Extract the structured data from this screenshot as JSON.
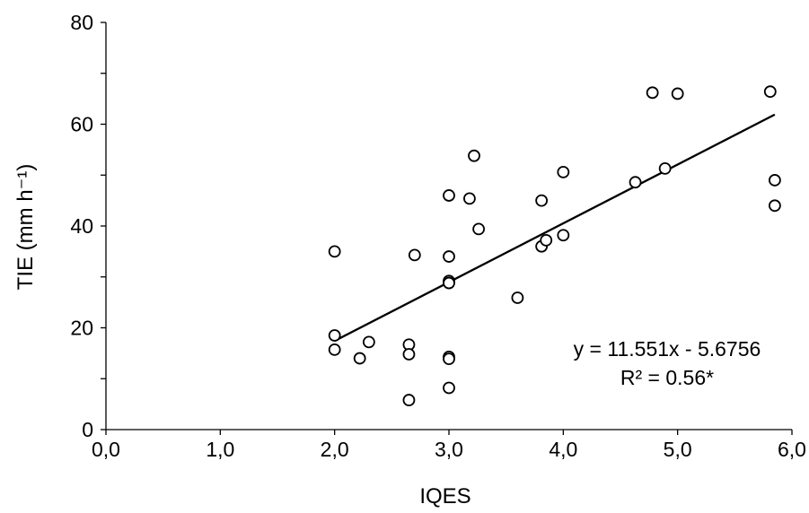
{
  "chart_data": {
    "type": "scatter",
    "xlabel": "IQES",
    "ylabel": "TIE (mm h⁻¹)",
    "xlim": [
      0,
      6
    ],
    "ylim": [
      0,
      80
    ],
    "x_ticks": [
      "0,0",
      "1,0",
      "2,0",
      "3,0",
      "4,0",
      "5,0",
      "6,0"
    ],
    "x_tick_values": [
      0,
      1,
      2,
      3,
      4,
      5,
      6
    ],
    "y_ticks": [
      "0",
      "20",
      "40",
      "60",
      "80"
    ],
    "y_tick_values": [
      0,
      20,
      40,
      60,
      80
    ],
    "grid": false,
    "series": [
      {
        "points": [
          {
            "x": 2.0,
            "y": 35.0
          },
          {
            "x": 2.0,
            "y": 18.5
          },
          {
            "x": 2.0,
            "y": 15.7
          },
          {
            "x": 2.22,
            "y": 14.0
          },
          {
            "x": 2.3,
            "y": 17.2
          },
          {
            "x": 2.65,
            "y": 16.7
          },
          {
            "x": 2.65,
            "y": 14.8
          },
          {
            "x": 2.65,
            "y": 5.8
          },
          {
            "x": 2.7,
            "y": 34.3
          },
          {
            "x": 3.0,
            "y": 46.0
          },
          {
            "x": 3.0,
            "y": 34.0
          },
          {
            "x": 3.0,
            "y": 29.2
          },
          {
            "x": 3.0,
            "y": 28.8
          },
          {
            "x": 3.0,
            "y": 14.3
          },
          {
            "x": 3.0,
            "y": 13.9
          },
          {
            "x": 3.0,
            "y": 8.2
          },
          {
            "x": 3.18,
            "y": 45.4
          },
          {
            "x": 3.22,
            "y": 53.8
          },
          {
            "x": 3.26,
            "y": 39.4
          },
          {
            "x": 3.6,
            "y": 25.9
          },
          {
            "x": 3.81,
            "y": 45.0
          },
          {
            "x": 3.81,
            "y": 36.0
          },
          {
            "x": 3.85,
            "y": 37.2
          },
          {
            "x": 4.0,
            "y": 50.6
          },
          {
            "x": 4.0,
            "y": 38.2
          },
          {
            "x": 4.63,
            "y": 48.6
          },
          {
            "x": 4.78,
            "y": 66.2
          },
          {
            "x": 4.89,
            "y": 51.3
          },
          {
            "x": 5.0,
            "y": 66.0
          },
          {
            "x": 5.81,
            "y": 66.4
          },
          {
            "x": 5.85,
            "y": 49.0
          },
          {
            "x": 5.85,
            "y": 44.0
          }
        ]
      }
    ],
    "trendline": {
      "slope": 11.551,
      "intercept": -5.6756,
      "x_range": [
        2.0,
        5.85
      ]
    },
    "annotations": {
      "equation": "y = 11.551x - 5.6756",
      "r_squared": "R² = 0.56*"
    }
  }
}
